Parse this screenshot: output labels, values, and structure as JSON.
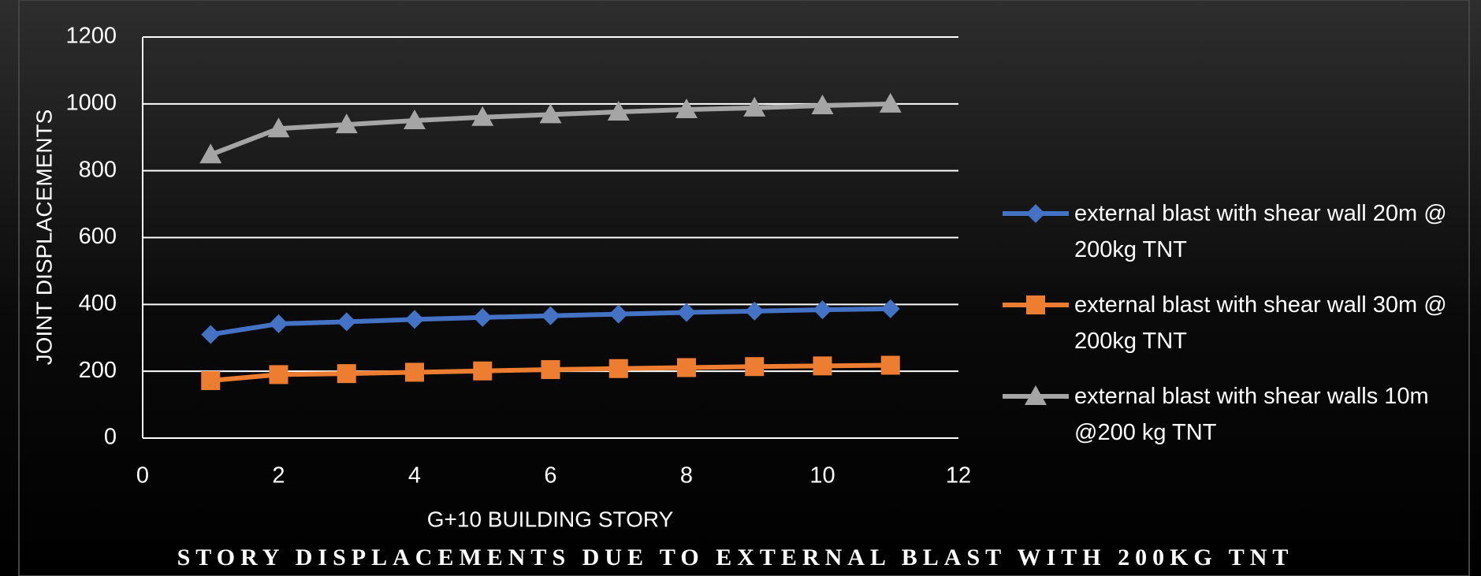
{
  "chart_data": {
    "type": "line",
    "title": "STORY DISPLACEMENTS DUE TO EXTERNAL BLAST WITH 200KG TNT",
    "x_label": "G+10 BUILDING STORY",
    "y_label": "JOINT DISPLACEMENTS",
    "x": [
      1,
      2,
      3,
      4,
      5,
      6,
      7,
      8,
      9,
      10,
      11
    ],
    "series": [
      {
        "name": "external blast with shear wall 20m @ 200kg TNT",
        "color": "#4472c4",
        "marker": "diamond",
        "values": [
          310,
          342,
          348,
          355,
          361,
          366,
          371,
          376,
          380,
          384,
          387
        ]
      },
      {
        "name": "external blast with shear wall 30m @ 200kg TNT",
        "color": "#ed7d31",
        "marker": "square",
        "values": [
          172,
          190,
          193,
          197,
          201,
          205,
          208,
          211,
          214,
          216,
          218
        ]
      },
      {
        "name": "external blast with shear walls 10m @200 kg TNT",
        "color": "#a5a5a5",
        "marker": "triangle",
        "values": [
          848,
          926,
          938,
          950,
          960,
          968,
          976,
          983,
          988,
          995,
          1000
        ]
      }
    ],
    "xlim": [
      0,
      12
    ],
    "xticks": [
      0,
      2,
      4,
      6,
      8,
      10,
      12
    ],
    "ylim": [
      0,
      1200
    ],
    "yticks": [
      0,
      200,
      400,
      600,
      800,
      1000,
      1200
    ],
    "grid": true,
    "legend": "right"
  }
}
